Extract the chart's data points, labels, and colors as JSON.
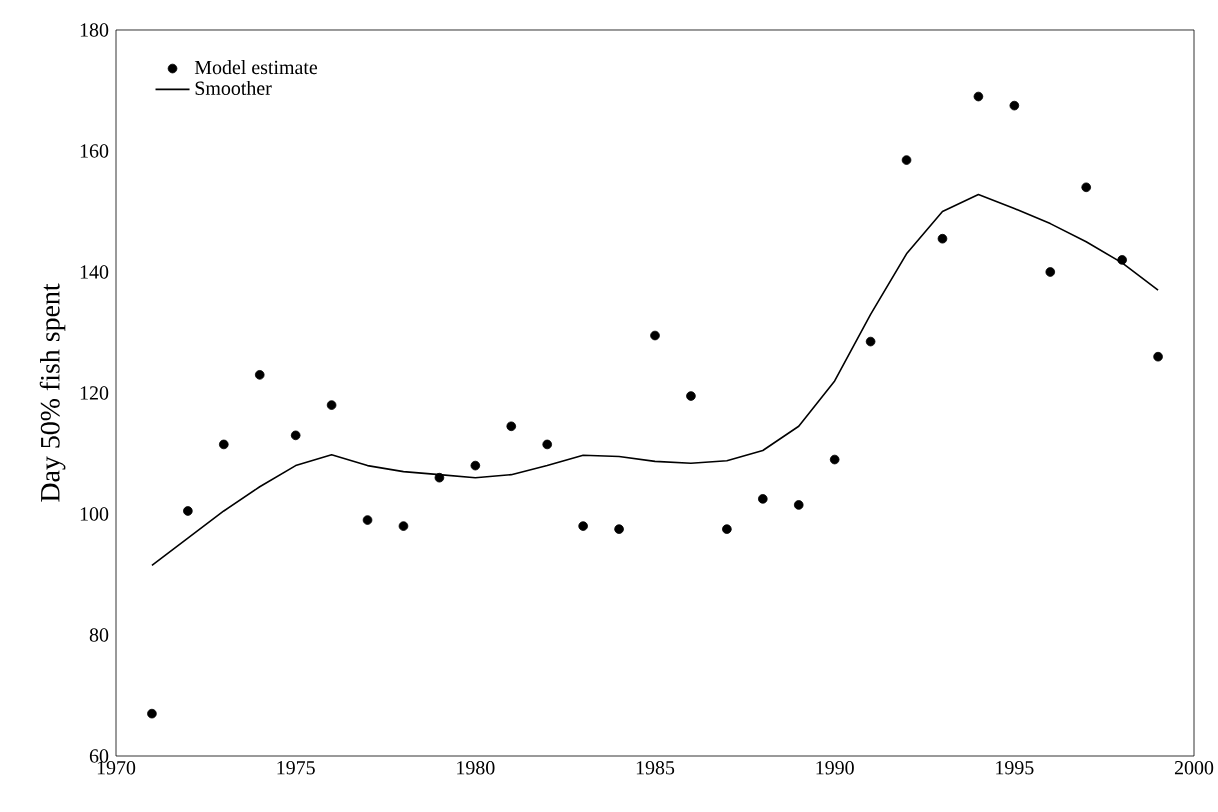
{
  "chart_data": {
    "type": "scatter",
    "ylabel": "Day 50% fish spent",
    "xlim": [
      1970,
      2000
    ],
    "ylim": [
      60,
      180
    ],
    "xticks": [
      1970,
      1975,
      1980,
      1985,
      1990,
      1995,
      2000
    ],
    "yticks": [
      60,
      80,
      100,
      120,
      140,
      160,
      180
    ],
    "legend": "top left",
    "grid": false,
    "series": [
      {
        "name": "Model estimate",
        "marker": "circle",
        "color": "#000000",
        "x": [
          1971,
          1972,
          1973,
          1974,
          1975,
          1976,
          1977,
          1978,
          1979,
          1980,
          1981,
          1982,
          1983,
          1984,
          1985,
          1986,
          1987,
          1988,
          1989,
          1990,
          1991,
          1992,
          1993,
          1994,
          1995,
          1996,
          1997,
          1998,
          1999
        ],
        "values": [
          67,
          100.5,
          111.5,
          123,
          113,
          118,
          99,
          98,
          106,
          108,
          114.5,
          111.5,
          98,
          97.5,
          129.5,
          119.5,
          97.5,
          102.5,
          101.5,
          109,
          128.5,
          158.5,
          145.5,
          169,
          167.5,
          140,
          154,
          142,
          126
        ]
      },
      {
        "name": "Smoother",
        "type": "line",
        "marker": "none",
        "line_style": "solid",
        "color": "#000000",
        "x": [
          1971,
          1972,
          1973,
          1974,
          1975,
          1976,
          1977,
          1978,
          1979,
          1980,
          1981,
          1982,
          1983,
          1984,
          1985,
          1986,
          1987,
          1988,
          1989,
          1990,
          1991,
          1992,
          1993,
          1994,
          1995,
          1996,
          1997,
          1998,
          1999
        ],
        "values": [
          91.5,
          96,
          100.5,
          104.5,
          108,
          109.8,
          108,
          107,
          106.5,
          106,
          106.5,
          108,
          109.7,
          109.5,
          108.7,
          108.4,
          108.8,
          110.5,
          114.5,
          122,
          133,
          143,
          150,
          152.8,
          150.5,
          148,
          145,
          141.5,
          137
        ]
      }
    ]
  }
}
